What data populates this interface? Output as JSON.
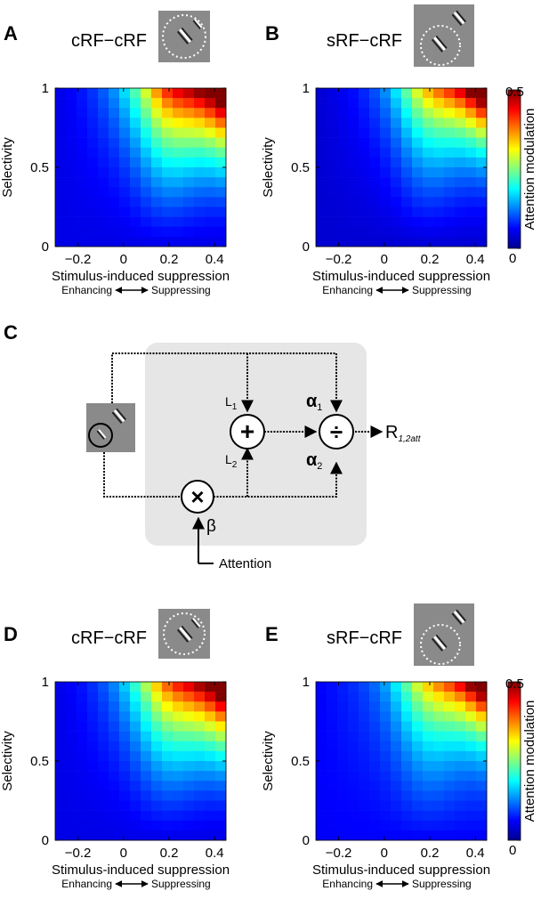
{
  "panels": {
    "A": {
      "letter": "A",
      "condition": "cRF−cRF"
    },
    "B": {
      "letter": "B",
      "condition": "sRF−cRF"
    },
    "C": {
      "letter": "C"
    },
    "D": {
      "letter": "D",
      "condition": "cRF−cRF"
    },
    "E": {
      "letter": "E",
      "condition": "sRF−cRF"
    }
  },
  "axes": {
    "xlabel": "Stimulus-induced suppression",
    "ylabel": "Selectivity",
    "x_left_note": "Enhancing",
    "x_right_note": "Suppressing",
    "xticks": [
      "−0.2",
      "0",
      "0.2",
      "0.4"
    ],
    "yticks": [
      "0",
      "0.5",
      "1"
    ]
  },
  "colorbar": {
    "label": "Attention modulation",
    "min_label": "0",
    "max_label": "0.5",
    "colormap": "jet"
  },
  "diagram": {
    "L1": "L",
    "L1_sub": "1",
    "L2": "L",
    "L2_sub": "2",
    "alpha1": "α",
    "alpha1_sub": "1",
    "alpha2": "α",
    "alpha2_sub": "2",
    "beta": "β",
    "plus": "+",
    "divide": "÷",
    "times": "×",
    "output": "R",
    "output_sub": "1,2att",
    "attention": "Attention"
  },
  "chart_data": [
    {
      "panel": "A",
      "type": "heatmap",
      "title": "cRF−cRF",
      "xlabel": "Stimulus-induced suppression",
      "ylabel": "Selectivity",
      "xlim": [
        -0.3,
        0.45
      ],
      "ylim": [
        0,
        1
      ],
      "clim": [
        0,
        0.5
      ],
      "grid_rows": 16,
      "grid_cols": 16,
      "model": {
        "base": 0.05,
        "peak": 0.5,
        "peak_x": 0.45,
        "peak_y": 1.0,
        "corner_sharpness": 1.0,
        "ridge": 0.12
      }
    },
    {
      "panel": "B",
      "type": "heatmap",
      "title": "sRF−cRF",
      "xlabel": "Stimulus-induced suppression",
      "ylabel": "Selectivity",
      "xlim": [
        -0.3,
        0.45
      ],
      "ylim": [
        0,
        1
      ],
      "clim": [
        0,
        0.5
      ],
      "grid_rows": 16,
      "grid_cols": 16,
      "model": {
        "base": 0.04,
        "peak": 0.5,
        "peak_x": 0.45,
        "peak_y": 1.0,
        "corner_sharpness": 1.6,
        "ridge": 0.1
      }
    },
    {
      "panel": "D",
      "type": "heatmap",
      "title": "cRF−cRF",
      "xlabel": "Stimulus-induced suppression",
      "ylabel": "Selectivity",
      "xlim": [
        -0.3,
        0.45
      ],
      "ylim": [
        0,
        1
      ],
      "clim": [
        0,
        0.5
      ],
      "grid_rows": 16,
      "grid_cols": 16,
      "model": {
        "base": 0.05,
        "peak": 0.5,
        "peak_x": 0.45,
        "peak_y": 1.0,
        "corner_sharpness": 1.1,
        "ridge": 0.1
      }
    },
    {
      "panel": "E",
      "type": "heatmap",
      "title": "sRF−cRF",
      "xlabel": "Stimulus-induced suppression",
      "ylabel": "Selectivity",
      "xlim": [
        -0.3,
        0.45
      ],
      "ylim": [
        0,
        1
      ],
      "clim": [
        0,
        0.5
      ],
      "grid_rows": 16,
      "grid_cols": 16,
      "model": {
        "base": 0.06,
        "peak": 0.5,
        "peak_x": 0.45,
        "peak_y": 1.0,
        "corner_sharpness": 1.8,
        "ridge": 0.09
      }
    }
  ]
}
